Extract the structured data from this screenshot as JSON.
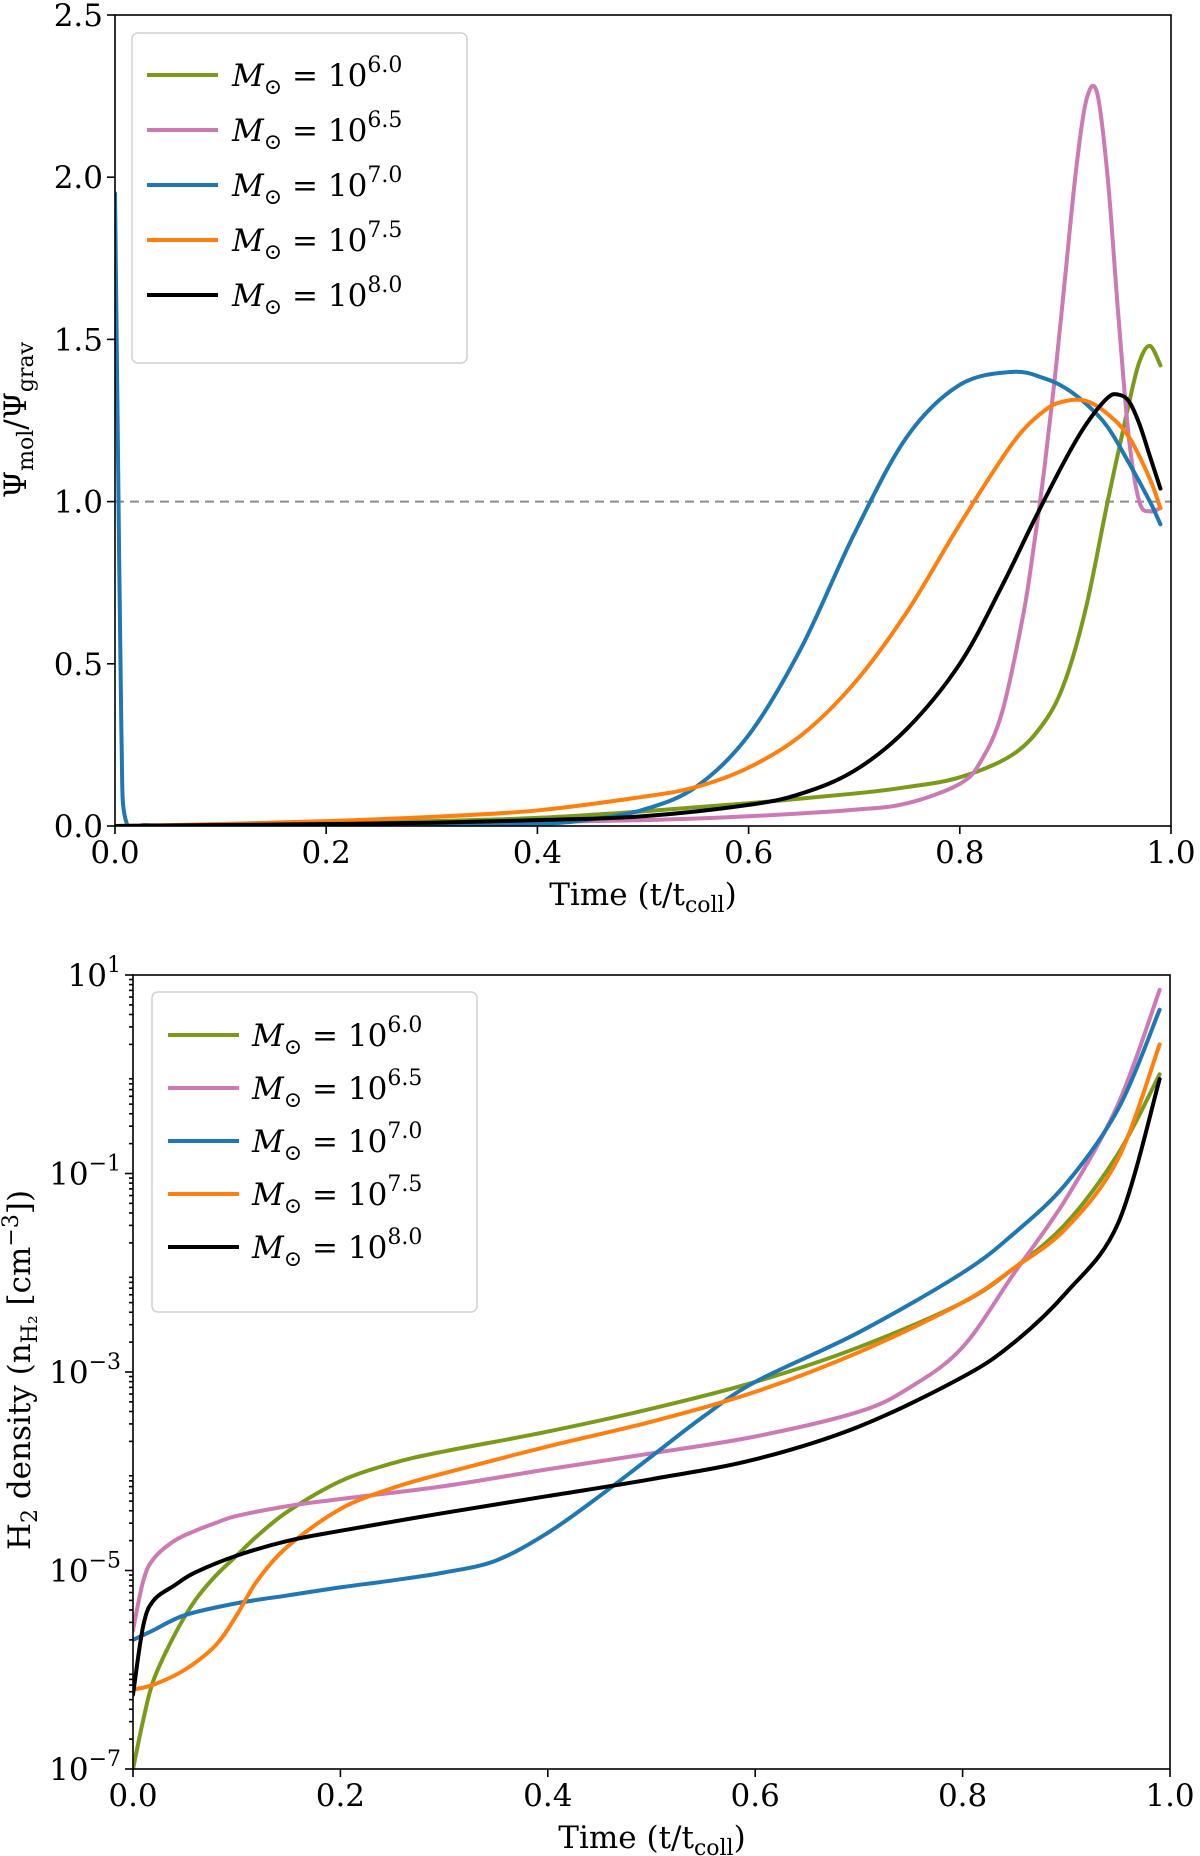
{
  "chart_data": [
    {
      "type": "line",
      "id": "top",
      "scale": "linear",
      "xlim": [
        0.0,
        1.0
      ],
      "ylim": [
        0.0,
        2.5
      ],
      "xticks": [
        0.0,
        0.2,
        0.4,
        0.6,
        0.8,
        1.0
      ],
      "xtick_labels": [
        "0.0",
        "0.2",
        "0.4",
        "0.6",
        "0.8",
        "1.0"
      ],
      "yticks": [
        0.0,
        0.5,
        1.0,
        1.5,
        2.0,
        2.5
      ],
      "ytick_labels": [
        "0.0",
        "0.5",
        "1.0",
        "1.5",
        "2.0",
        "2.5"
      ],
      "xlabel": "Time (t/t",
      "xlabel_sub": "coll",
      "xlabel_tail": ")",
      "ylabel": "Ψ",
      "ylabel_sub1": "mol",
      "ylabel_mid": "/Ψ",
      "ylabel_sub2": "grav",
      "reference_line": {
        "y": 1.0,
        "style": "dashed",
        "color": "#8c8c8c"
      },
      "legend": {
        "location": "upper-left",
        "entries": [
          {
            "name": "M",
            "sub": "⊙",
            "eq": " = 10",
            "exp": "6.0"
          },
          {
            "name": "M",
            "sub": "⊙",
            "eq": " = 10",
            "exp": "6.5"
          },
          {
            "name": "M",
            "sub": "⊙",
            "eq": " = 10",
            "exp": "7.0"
          },
          {
            "name": "M",
            "sub": "⊙",
            "eq": " = 10",
            "exp": "7.5"
          },
          {
            "name": "M",
            "sub": "⊙",
            "eq": " = 10",
            "exp": "8.0"
          }
        ]
      },
      "series": [
        {
          "name": "M⊙ = 10^6.0",
          "color": "#7a9a1a",
          "x": [
            0.0,
            0.1,
            0.2,
            0.3,
            0.4,
            0.5,
            0.6,
            0.7,
            0.75,
            0.8,
            0.85,
            0.88,
            0.9,
            0.92,
            0.94,
            0.96,
            0.97,
            0.98,
            0.99
          ],
          "y": [
            0.0,
            0.003,
            0.008,
            0.015,
            0.025,
            0.045,
            0.07,
            0.1,
            0.12,
            0.15,
            0.22,
            0.32,
            0.45,
            0.68,
            1.0,
            1.3,
            1.43,
            1.48,
            1.42
          ]
        },
        {
          "name": "M⊙ = 10^6.5",
          "color": "#cc79b4",
          "x": [
            0.0,
            0.1,
            0.2,
            0.3,
            0.4,
            0.5,
            0.6,
            0.7,
            0.75,
            0.8,
            0.82,
            0.84,
            0.86,
            0.87,
            0.88,
            0.89,
            0.9,
            0.91,
            0.92,
            0.93,
            0.94,
            0.95,
            0.96,
            0.97,
            0.98,
            0.99
          ],
          "y": [
            0.0,
            0.002,
            0.004,
            0.007,
            0.012,
            0.018,
            0.03,
            0.05,
            0.07,
            0.13,
            0.2,
            0.35,
            0.65,
            0.86,
            1.1,
            1.38,
            1.7,
            2.02,
            2.24,
            2.26,
            2.0,
            1.58,
            1.2,
            1.0,
            0.97,
            0.98
          ]
        },
        {
          "name": "M⊙ = 10^7.0",
          "color": "#1f77b4",
          "x": [
            0.0,
            0.003,
            0.006,
            0.01,
            0.03,
            0.1,
            0.2,
            0.3,
            0.4,
            0.45,
            0.5,
            0.55,
            0.6,
            0.65,
            0.7,
            0.75,
            0.8,
            0.85,
            0.88,
            0.9,
            0.92,
            0.94,
            0.96,
            0.98,
            0.99
          ],
          "y": [
            1.95,
            1.1,
            0.3,
            0.02,
            0.003,
            0.0,
            0.001,
            0.002,
            0.006,
            0.02,
            0.05,
            0.12,
            0.28,
            0.55,
            0.9,
            1.2,
            1.36,
            1.4,
            1.38,
            1.35,
            1.3,
            1.23,
            1.12,
            1.0,
            0.93
          ]
        },
        {
          "name": "M⊙ = 10^7.5",
          "color": "#ff7f0e",
          "x": [
            0.0,
            0.1,
            0.2,
            0.3,
            0.4,
            0.5,
            0.55,
            0.6,
            0.65,
            0.7,
            0.75,
            0.8,
            0.85,
            0.88,
            0.9,
            0.92,
            0.94,
            0.96,
            0.98,
            0.99
          ],
          "y": [
            0.0,
            0.006,
            0.015,
            0.028,
            0.048,
            0.09,
            0.12,
            0.18,
            0.28,
            0.44,
            0.66,
            0.93,
            1.18,
            1.28,
            1.31,
            1.31,
            1.27,
            1.2,
            1.07,
            0.98
          ]
        },
        {
          "name": "M⊙ = 10^8.0",
          "color": "#000000",
          "x": [
            0.0,
            0.1,
            0.2,
            0.3,
            0.4,
            0.5,
            0.6,
            0.65,
            0.7,
            0.75,
            0.8,
            0.84,
            0.87,
            0.9,
            0.92,
            0.94,
            0.95,
            0.96,
            0.97,
            0.98,
            0.99
          ],
          "y": [
            0.0,
            0.003,
            0.006,
            0.01,
            0.018,
            0.03,
            0.065,
            0.1,
            0.17,
            0.3,
            0.5,
            0.74,
            0.94,
            1.13,
            1.24,
            1.32,
            1.33,
            1.31,
            1.24,
            1.14,
            1.04
          ]
        }
      ]
    },
    {
      "type": "line",
      "id": "bottom",
      "scale": "log",
      "xlim": [
        0.0,
        1.0
      ],
      "ylim": [
        -7,
        1
      ],
      "xticks": [
        0.0,
        0.2,
        0.4,
        0.6,
        0.8,
        1.0
      ],
      "xtick_labels": [
        "0.0",
        "0.2",
        "0.4",
        "0.6",
        "0.8",
        "1.0"
      ],
      "yticks": [
        -7,
        -5,
        -3,
        -1,
        1
      ],
      "ytick_labels": [
        {
          "base": "10",
          "exp": "−7"
        },
        {
          "base": "10",
          "exp": "−5"
        },
        {
          "base": "10",
          "exp": "−3"
        },
        {
          "base": "10",
          "exp": "−1"
        },
        {
          "base": "10",
          "exp": "1"
        }
      ],
      "xlabel": "Time (t/t",
      "xlabel_sub": "coll",
      "xlabel_tail": ")",
      "ylabel": "H",
      "ylabel_sub1": "2",
      "ylabel_mid": " density (n",
      "ylabel_sub2": "H₂",
      "ylabel_tail": " [cm",
      "ylabel_sup": "−3",
      "ylabel_end": "])",
      "y_values_note": "log10 of H2 density",
      "legend": {
        "location": "upper-left",
        "entries": [
          {
            "name": "M",
            "sub": "⊙",
            "eq": " = 10",
            "exp": "6.0"
          },
          {
            "name": "M",
            "sub": "⊙",
            "eq": " = 10",
            "exp": "6.5"
          },
          {
            "name": "M",
            "sub": "⊙",
            "eq": " = 10",
            "exp": "7.0"
          },
          {
            "name": "M",
            "sub": "⊙",
            "eq": " = 10",
            "exp": "7.5"
          },
          {
            "name": "M",
            "sub": "⊙",
            "eq": " = 10",
            "exp": "8.0"
          }
        ]
      },
      "series": [
        {
          "name": "M⊙ = 10^6.0",
          "color": "#7a9a1a",
          "x": [
            0.0,
            0.01,
            0.02,
            0.04,
            0.06,
            0.08,
            0.1,
            0.12,
            0.15,
            0.2,
            0.25,
            0.3,
            0.4,
            0.5,
            0.6,
            0.7,
            0.8,
            0.85,
            0.9,
            0.95,
            0.99
          ],
          "y": [
            -7.0,
            -6.5,
            -6.1,
            -5.65,
            -5.3,
            -5.05,
            -4.85,
            -4.65,
            -4.4,
            -4.1,
            -3.92,
            -3.8,
            -3.6,
            -3.37,
            -3.1,
            -2.75,
            -2.3,
            -1.95,
            -1.5,
            -0.8,
            0.0
          ]
        },
        {
          "name": "M⊙ = 10^6.5",
          "color": "#cc79b4",
          "x": [
            0.0,
            0.01,
            0.02,
            0.04,
            0.06,
            0.08,
            0.1,
            0.15,
            0.2,
            0.3,
            0.4,
            0.5,
            0.6,
            0.7,
            0.75,
            0.8,
            0.85,
            0.9,
            0.95,
            0.99
          ],
          "y": [
            -5.6,
            -5.1,
            -4.88,
            -4.7,
            -4.6,
            -4.52,
            -4.45,
            -4.35,
            -4.28,
            -4.15,
            -3.98,
            -3.82,
            -3.65,
            -3.4,
            -3.15,
            -2.75,
            -2.0,
            -1.25,
            -0.3,
            0.85
          ]
        },
        {
          "name": "M⊙ = 10^7.0",
          "color": "#1f77b4",
          "x": [
            0.0,
            0.02,
            0.05,
            0.1,
            0.15,
            0.2,
            0.25,
            0.3,
            0.35,
            0.4,
            0.45,
            0.5,
            0.55,
            0.6,
            0.7,
            0.8,
            0.85,
            0.9,
            0.95,
            0.99
          ],
          "y": [
            -5.7,
            -5.6,
            -5.45,
            -5.33,
            -5.25,
            -5.17,
            -5.1,
            -5.02,
            -4.9,
            -4.62,
            -4.25,
            -3.85,
            -3.45,
            -3.1,
            -2.6,
            -2.0,
            -1.6,
            -1.1,
            -0.35,
            0.65
          ]
        },
        {
          "name": "M⊙ = 10^7.5",
          "color": "#ff7f0e",
          "x": [
            0.0,
            0.02,
            0.05,
            0.08,
            0.1,
            0.12,
            0.15,
            0.2,
            0.25,
            0.3,
            0.4,
            0.5,
            0.6,
            0.7,
            0.8,
            0.85,
            0.9,
            0.95,
            0.99
          ],
          "y": [
            -6.2,
            -6.15,
            -6.0,
            -5.75,
            -5.45,
            -5.1,
            -4.75,
            -4.38,
            -4.17,
            -4.02,
            -3.75,
            -3.5,
            -3.2,
            -2.8,
            -2.3,
            -1.95,
            -1.55,
            -0.85,
            0.3
          ]
        },
        {
          "name": "M⊙ = 10^8.0",
          "color": "#000000",
          "x": [
            0.0,
            0.01,
            0.02,
            0.04,
            0.06,
            0.1,
            0.15,
            0.2,
            0.3,
            0.4,
            0.5,
            0.6,
            0.7,
            0.8,
            0.85,
            0.9,
            0.95,
            0.99
          ],
          "y": [
            -6.25,
            -5.55,
            -5.3,
            -5.15,
            -5.02,
            -4.85,
            -4.7,
            -4.6,
            -4.42,
            -4.25,
            -4.08,
            -3.88,
            -3.55,
            -3.05,
            -2.7,
            -2.2,
            -1.5,
            -0.05
          ]
        }
      ]
    }
  ]
}
